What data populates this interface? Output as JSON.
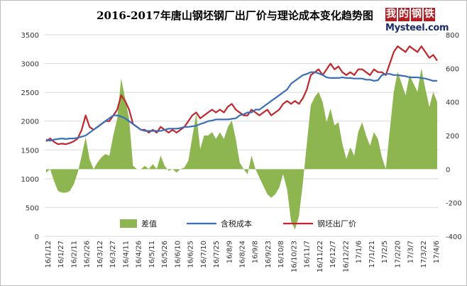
{
  "chart_data": {
    "type": "line",
    "title": "2016-2017年唐山钢坯钢厂出厂价与理论成本变化趋势图",
    "y_left": {
      "min": 0,
      "max": 3500,
      "ticks": [
        "0",
        "500",
        "1000",
        "1500",
        "2000",
        "2500",
        "3000",
        "3500"
      ]
    },
    "y_right": {
      "min": -400,
      "max": 800,
      "ticks": [
        "-400",
        "-200",
        "0",
        "200",
        "400",
        "600",
        "800"
      ]
    },
    "x_ticks": [
      "16/1/12",
      "16/1/27",
      "16/2/11",
      "16/2/26",
      "16/3/12",
      "16/3/27",
      "16/4/11",
      "16/4/26",
      "16/5/11",
      "16/5/26",
      "16/6/10",
      "16/6/25",
      "16/7/10",
      "16/7/25",
      "16/8/9",
      "16/8/24",
      "16/9/8",
      "16/9/23",
      "16/10/8",
      "16/10/23",
      "16/11/7",
      "16/11/22",
      "16/12/7",
      "16/12/22",
      "17/1/6",
      "17/1/21",
      "17/2/5",
      "17/2/20",
      "17/3/7",
      "17/3/22",
      "17/4/6"
    ],
    "legend": [
      "差值",
      "含税成本",
      "钢坯出厂价"
    ],
    "series": [
      {
        "name": "钢坯出厂价",
        "axis": "left",
        "color": "#c0272d",
        "values": [
          1650,
          1700,
          1640,
          1600,
          1610,
          1600,
          1620,
          1650,
          1700,
          1850,
          2100,
          1900,
          1850,
          1900,
          1950,
          2000,
          2000,
          2100,
          2200,
          2450,
          2350,
          2200,
          1950,
          1900,
          1850,
          1850,
          1800,
          1850,
          1800,
          1900,
          1850,
          1800,
          1850,
          1800,
          1850,
          1900,
          2000,
          2100,
          2150,
          2050,
          2100,
          2150,
          2200,
          2150,
          2200,
          2150,
          2250,
          2300,
          2200,
          2150,
          2100,
          2100,
          2200,
          2150,
          2100,
          2150,
          2200,
          2100,
          2150,
          2200,
          2300,
          2350,
          2300,
          2350,
          2300,
          2400,
          2550,
          2800,
          2850,
          2900,
          2800,
          2900,
          3000,
          2900,
          2950,
          2850,
          2800,
          2850,
          2800,
          2900,
          2900,
          2850,
          2800,
          2900,
          2850,
          2850,
          2800,
          3000,
          3200,
          3300,
          3250,
          3200,
          3300,
          3250,
          3200,
          3300,
          3200,
          3100,
          3150,
          3050
        ]
      },
      {
        "name": "含税成本",
        "axis": "left",
        "color": "#3a6fb6",
        "values": [
          1680,
          1660,
          1680,
          1690,
          1700,
          1690,
          1700,
          1700,
          1710,
          1730,
          1750,
          1800,
          1850,
          1900,
          1950,
          2000,
          2050,
          2100,
          2100,
          2080,
          2050,
          2000,
          1950,
          1900,
          1850,
          1830,
          1830,
          1830,
          1830,
          1830,
          1850,
          1870,
          1870,
          1870,
          1880,
          1900,
          1900,
          1910,
          1920,
          1950,
          1970,
          2000,
          2010,
          2030,
          2030,
          2030,
          2030,
          2040,
          2050,
          2100,
          2120,
          2150,
          2150,
          2200,
          2200,
          2250,
          2300,
          2350,
          2400,
          2450,
          2500,
          2550,
          2650,
          2700,
          2750,
          2800,
          2820,
          2850,
          2850,
          2830,
          2800,
          2760,
          2750,
          2750,
          2750,
          2760,
          2750,
          2750,
          2740,
          2740,
          2740,
          2720,
          2720,
          2700,
          2710,
          2800,
          2820,
          2820,
          2800,
          2800,
          2790,
          2780,
          2760,
          2760,
          2760,
          2750,
          2740,
          2720,
          2700,
          2700
        ]
      },
      {
        "name": "差值",
        "axis": "right",
        "color": "#8db650",
        "values": [
          -20,
          0,
          -70,
          -130,
          -140,
          -140,
          -130,
          -90,
          -20,
          80,
          190,
          60,
          0,
          40,
          70,
          90,
          80,
          200,
          300,
          540,
          420,
          300,
          20,
          0,
          0,
          20,
          0,
          30,
          0,
          80,
          20,
          -10,
          0,
          -20,
          0,
          10,
          50,
          190,
          330,
          120,
          200,
          200,
          220,
          180,
          220,
          180,
          250,
          290,
          180,
          40,
          0,
          -30,
          80,
          0,
          -50,
          -100,
          -150,
          -170,
          -150,
          -110,
          -30,
          -120,
          -310,
          -360,
          -280,
          -80,
          150,
          380,
          430,
          460,
          400,
          280,
          360,
          260,
          280,
          150,
          60,
          130,
          80,
          220,
          280,
          200,
          140,
          220,
          180,
          70,
          0,
          230,
          460,
          580,
          510,
          440,
          560,
          510,
          460,
          600,
          480,
          370,
          460,
          400
        ]
      }
    ]
  },
  "watermark": {
    "cn": [
      "我",
      "的",
      "钢",
      "铁"
    ],
    "en": "Mysteel.com"
  }
}
